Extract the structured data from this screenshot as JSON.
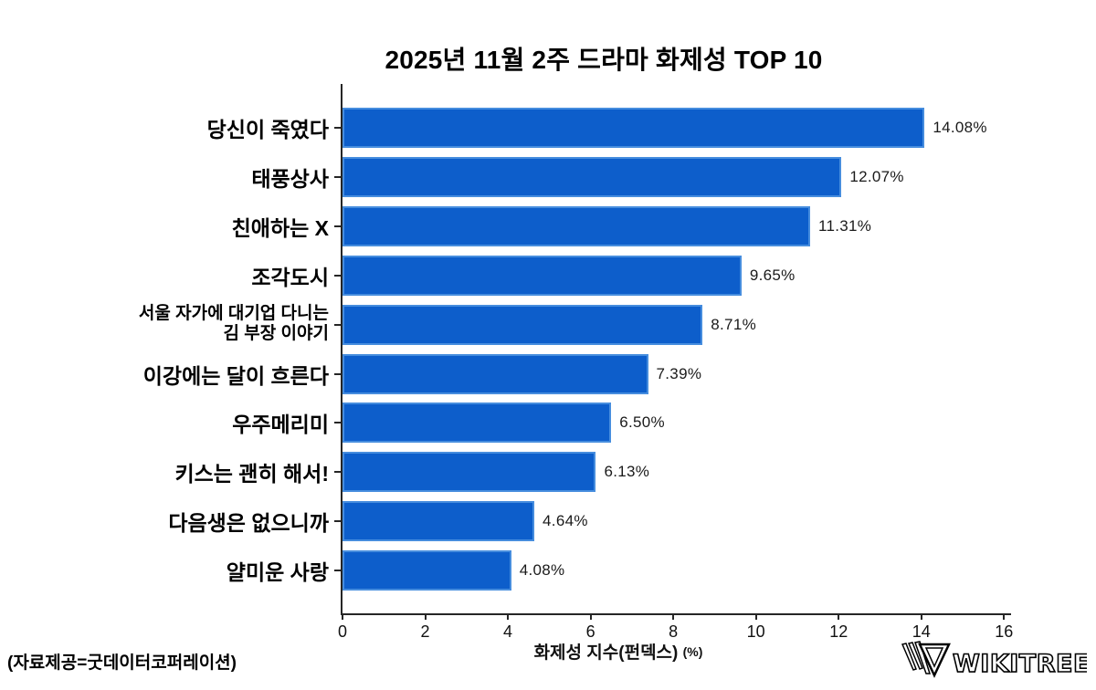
{
  "chart_data": {
    "type": "bar",
    "orientation": "horizontal",
    "title": "2025년 11월 2주 드라마 화제성 TOP 10",
    "categories": [
      "당신이 죽였다",
      "태풍상사",
      "친애하는 X",
      "조각도시",
      "서울 자가에 대기업 다니는\n김 부장 이야기",
      "이강에는 달이 흐른다",
      "우주메리미",
      "키스는 괜히 해서!",
      "다음생은 없으니까",
      "얄미운 사랑"
    ],
    "values": [
      14.08,
      12.07,
      11.31,
      9.65,
      8.71,
      7.39,
      6.5,
      6.13,
      4.64,
      4.08
    ],
    "value_labels": [
      "14.08%",
      "12.07%",
      "11.31%",
      "9.65%",
      "8.71%",
      "7.39%",
      "6.50%",
      "6.13%",
      "4.64%",
      "4.08%"
    ],
    "xlabel": "화제성 지수(펀덱스)",
    "xlabel_unit": "(%)",
    "xticks": [
      "0",
      "2",
      "4",
      "6",
      "8",
      "10",
      "12",
      "14",
      "16"
    ],
    "xlim": [
      0,
      16.17
    ],
    "grid": false,
    "legend": "none",
    "bar_color": "#0d5ecb",
    "axis_color": "#262626"
  },
  "footer": {
    "source_note": "(자료제공=굿데이터코퍼레이션)",
    "brand": "WIKITREE"
  }
}
